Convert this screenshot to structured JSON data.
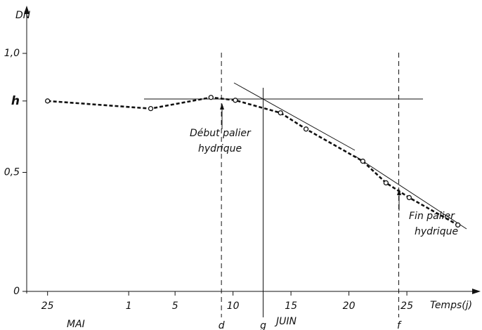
{
  "chart_data": {
    "type": "line",
    "y_label": "DN",
    "x_label": "Temps(j)",
    "month_labels": [
      "MAI",
      "JUIN"
    ],
    "x": [
      0,
      8.9,
      14.1,
      16.2,
      20.1,
      22.3,
      27.2,
      29.2,
      31.2,
      35.4
    ],
    "series": [
      {
        "name": "DN",
        "color": "#111111",
        "values": [
          0.8,
          0.768,
          0.815,
          0.803,
          0.75,
          0.682,
          0.547,
          0.456,
          0.394,
          0.279
        ]
      }
    ],
    "xlim": [
      -1.8,
      37.3
    ],
    "xticks": [
      {
        "value": 0,
        "label": "25"
      },
      {
        "value": 7,
        "label": "1"
      },
      {
        "value": 11,
        "label": "5"
      },
      {
        "value": 16,
        "label": "10"
      },
      {
        "value": 21,
        "label": "15"
      },
      {
        "value": 26,
        "label": "20"
      },
      {
        "value": 31,
        "label": "25"
      }
    ],
    "ylim": [
      0,
      1.18
    ],
    "yticks": [
      0,
      {
        "value": 0.5,
        "label": "0,5"
      },
      {
        "value": 0.8,
        "label": "h"
      },
      {
        "value": 1,
        "label": "1,0"
      }
    ],
    "markers": [
      {
        "label": "d",
        "x": 15.0
      },
      {
        "label": "g",
        "x": 18.6
      },
      {
        "label": "f",
        "x": 30.3
      }
    ],
    "annotations": [
      [
        "Début palier",
        "hydrique"
      ],
      [
        "Fin palier",
        "hydrique"
      ]
    ]
  }
}
